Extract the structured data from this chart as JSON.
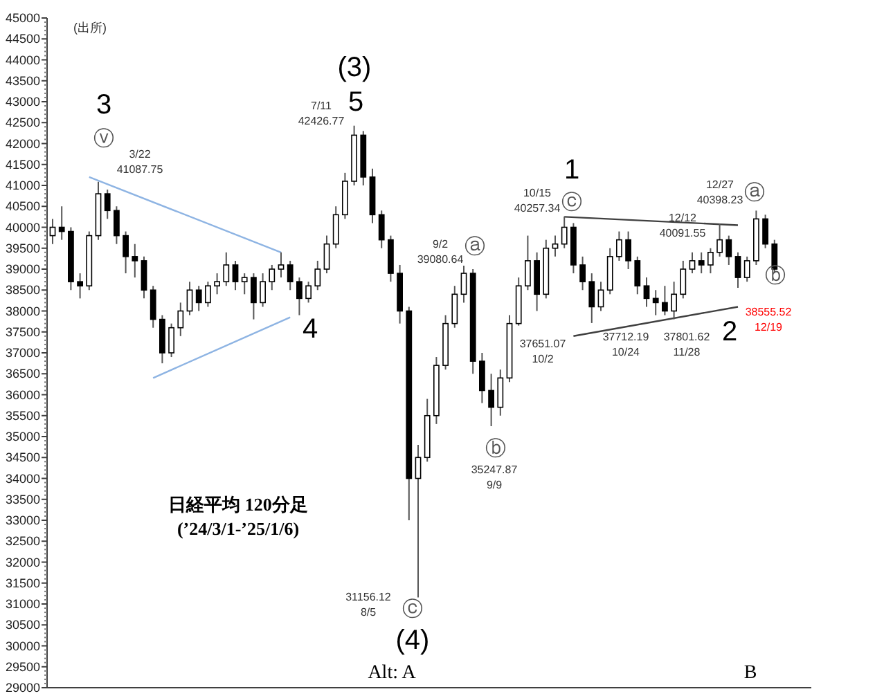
{
  "chart_data": {
    "type": "candlestick",
    "categories": [
      null,
      null,
      null,
      null,
      null,
      null,
      null,
      null,
      null,
      null,
      null,
      null,
      null,
      null,
      null,
      null,
      null,
      null,
      null,
      null,
      null,
      null,
      null,
      null,
      null,
      null,
      null,
      null,
      null,
      null,
      null,
      null,
      null,
      null,
      null,
      null,
      null,
      null,
      null,
      null,
      null,
      null,
      null,
      null,
      null,
      null,
      null,
      null,
      null,
      null,
      null,
      null,
      null,
      null,
      null,
      null,
      null,
      null,
      null,
      null,
      null,
      null,
      null,
      null,
      null,
      null,
      null,
      null,
      null,
      null,
      null,
      null,
      null,
      null,
      null,
      null,
      null,
      null,
      null,
      null
    ],
    "ohlc": [
      [
        39800,
        40200,
        39600,
        40000
      ],
      [
        40000,
        40500,
        39700,
        39900
      ],
      [
        39900,
        40000,
        38500,
        38700
      ],
      [
        38700,
        38900,
        38300,
        38600
      ],
      [
        38600,
        39900,
        38500,
        39800
      ],
      [
        39800,
        41087.75,
        39700,
        40800
      ],
      [
        40800,
        40900,
        40200,
        40400
      ],
      [
        40400,
        40500,
        39600,
        39800
      ],
      [
        39800,
        39900,
        38900,
        39300
      ],
      [
        39300,
        39600,
        38800,
        39200
      ],
      [
        39200,
        39300,
        38300,
        38500
      ],
      [
        38500,
        38600,
        37600,
        37800
      ],
      [
        37800,
        37900,
        36750,
        37000
      ],
      [
        37000,
        37700,
        36900,
        37600
      ],
      [
        37600,
        38200,
        37400,
        38000
      ],
      [
        38000,
        38700,
        37900,
        38500
      ],
      [
        38500,
        38600,
        38000,
        38200
      ],
      [
        38200,
        38700,
        38100,
        38600
      ],
      [
        38600,
        38900,
        38400,
        38700
      ],
      [
        38700,
        39400,
        38600,
        39100
      ],
      [
        39100,
        39200,
        38500,
        38700
      ],
      [
        38700,
        38900,
        38400,
        38800
      ],
      [
        38800,
        38900,
        37800,
        38200
      ],
      [
        38200,
        38900,
        38100,
        38700
      ],
      [
        38700,
        39100,
        38500,
        39000
      ],
      [
        39000,
        39400,
        38800,
        39100
      ],
      [
        39100,
        39200,
        38500,
        38700
      ],
      [
        38700,
        38800,
        37900,
        38300
      ],
      [
        38300,
        38700,
        38200,
        38600
      ],
      [
        38600,
        39200,
        38500,
        39000
      ],
      [
        39000,
        39800,
        38900,
        39600
      ],
      [
        39600,
        40500,
        39500,
        40300
      ],
      [
        40300,
        41300,
        40200,
        41100
      ],
      [
        41100,
        42426.77,
        41000,
        42200
      ],
      [
        42200,
        42300,
        41000,
        41200
      ],
      [
        41200,
        41400,
        40100,
        40300
      ],
      [
        40300,
        40400,
        39500,
        39700
      ],
      [
        39700,
        39800,
        38700,
        38900
      ],
      [
        38900,
        39100,
        37700,
        38000
      ],
      [
        38000,
        38100,
        33000,
        34000
      ],
      [
        34000,
        34800,
        31156.12,
        34500
      ],
      [
        34500,
        35900,
        34400,
        35500
      ],
      [
        35500,
        36900,
        35300,
        36700
      ],
      [
        36700,
        37900,
        36600,
        37700
      ],
      [
        37700,
        38600,
        37600,
        38400
      ],
      [
        38400,
        39080.64,
        38200,
        38900
      ],
      [
        38900,
        39000,
        36500,
        36800
      ],
      [
        36800,
        37000,
        35800,
        36100
      ],
      [
        36100,
        36500,
        35247.87,
        35700
      ],
      [
        35700,
        36600,
        35500,
        36400
      ],
      [
        36400,
        37900,
        36300,
        37700
      ],
      [
        37700,
        38800,
        37651.07,
        38600
      ],
      [
        38600,
        39800,
        38500,
        39200
      ],
      [
        39200,
        39400,
        38000,
        38400
      ],
      [
        38400,
        39700,
        38300,
        39500
      ],
      [
        39500,
        39800,
        39300,
        39600
      ],
      [
        39600,
        40257.34,
        39500,
        40000
      ],
      [
        40000,
        40100,
        38900,
        39100
      ],
      [
        39100,
        39300,
        38500,
        38700
      ],
      [
        38700,
        38900,
        37712.19,
        38100
      ],
      [
        38100,
        38700,
        38000,
        38500
      ],
      [
        38500,
        39500,
        38400,
        39300
      ],
      [
        39300,
        39900,
        39200,
        39700
      ],
      [
        39700,
        39900,
        39000,
        39200
      ],
      [
        39200,
        39300,
        38400,
        38600
      ],
      [
        38600,
        38800,
        38100,
        38300
      ],
      [
        38300,
        38500,
        37900,
        38200
      ],
      [
        38200,
        38600,
        37900,
        38000
      ],
      [
        38000,
        38700,
        37801.62,
        38400
      ],
      [
        38400,
        39200,
        38300,
        39000
      ],
      [
        39000,
        39400,
        38900,
        39200
      ],
      [
        39200,
        39400,
        38900,
        39100
      ],
      [
        39100,
        39500,
        38900,
        39400
      ],
      [
        39400,
        40091.55,
        39300,
        39700
      ],
      [
        39700,
        39800,
        39100,
        39300
      ],
      [
        39300,
        39400,
        38555.52,
        38800
      ],
      [
        38800,
        39300,
        38700,
        39200
      ],
      [
        39200,
        40398.23,
        39100,
        40200
      ],
      [
        40200,
        40300,
        39500,
        39600
      ],
      [
        39600,
        39700,
        38900,
        39000
      ]
    ],
    "series": [
      {
        "type": "line",
        "color": "#8eb4e3",
        "values": [
          null,
          null,
          null,
          null,
          41200,
          null,
          null,
          null,
          null,
          null,
          null,
          null,
          null,
          null,
          null,
          null,
          null,
          null,
          null,
          null,
          null,
          null,
          null,
          null,
          null,
          39400,
          null,
          null,
          null,
          null,
          null,
          null,
          null,
          null,
          null,
          null,
          null,
          null,
          null,
          null,
          null,
          null,
          null,
          null,
          null,
          null,
          null,
          null,
          null,
          null,
          null,
          null,
          null,
          null,
          null,
          null,
          null,
          null,
          null,
          null,
          null,
          null,
          null,
          null,
          null,
          null,
          null,
          null,
          null,
          null,
          null,
          null,
          null,
          null,
          null,
          null,
          null,
          null,
          null,
          null
        ]
      },
      {
        "type": "line",
        "color": "#8eb4e3",
        "values": [
          null,
          null,
          null,
          null,
          null,
          null,
          null,
          null,
          null,
          null,
          null,
          36400,
          null,
          null,
          null,
          null,
          null,
          null,
          null,
          null,
          null,
          null,
          null,
          null,
          null,
          null,
          37850,
          null,
          null,
          null,
          null,
          null,
          null,
          null,
          null,
          null,
          null,
          null,
          null,
          null,
          null,
          null,
          null,
          null,
          null,
          null,
          null,
          null,
          null,
          null,
          null,
          null,
          null,
          null,
          null,
          null,
          null,
          null,
          null,
          null,
          null,
          null,
          null,
          null,
          null,
          null,
          null,
          null,
          null,
          null,
          null,
          null,
          null,
          null,
          null,
          null,
          null,
          null,
          null,
          null
        ]
      },
      {
        "type": "line",
        "color": "#404040",
        "values": [
          null,
          null,
          null,
          null,
          null,
          null,
          null,
          null,
          null,
          null,
          null,
          null,
          null,
          null,
          null,
          null,
          null,
          null,
          null,
          null,
          null,
          null,
          null,
          null,
          null,
          null,
          null,
          null,
          null,
          null,
          null,
          null,
          null,
          null,
          null,
          null,
          null,
          null,
          null,
          null,
          null,
          null,
          null,
          null,
          null,
          null,
          null,
          null,
          null,
          null,
          null,
          null,
          null,
          null,
          null,
          null,
          40250,
          null,
          null,
          null,
          null,
          null,
          null,
          null,
          null,
          null,
          null,
          null,
          null,
          null,
          null,
          null,
          null,
          null,
          null,
          40050,
          null,
          null,
          null,
          null
        ]
      },
      {
        "type": "line",
        "color": "#404040",
        "values": [
          null,
          null,
          null,
          null,
          null,
          null,
          null,
          null,
          null,
          null,
          null,
          null,
          null,
          null,
          null,
          null,
          null,
          null,
          null,
          null,
          null,
          null,
          null,
          null,
          null,
          null,
          null,
          null,
          null,
          null,
          null,
          null,
          null,
          null,
          null,
          null,
          null,
          null,
          null,
          null,
          null,
          null,
          null,
          null,
          null,
          null,
          null,
          null,
          null,
          null,
          null,
          null,
          null,
          null,
          null,
          null,
          null,
          37400,
          null,
          null,
          null,
          null,
          null,
          null,
          null,
          null,
          null,
          null,
          null,
          null,
          null,
          null,
          null,
          null,
          null,
          38100,
          null,
          null,
          null,
          null
        ]
      }
    ],
    "ylim": [
      29000,
      45000
    ],
    "yticks": [
      29000,
      29500,
      30000,
      30500,
      31000,
      31500,
      32000,
      32500,
      33000,
      33500,
      34000,
      34500,
      35000,
      35500,
      36000,
      36500,
      37000,
      37500,
      38000,
      38500,
      39000,
      39500,
      40000,
      40500,
      41000,
      41500,
      42000,
      42500,
      43000,
      43500,
      44000,
      44500,
      45000
    ],
    "tick_labels": "y",
    "grid": false,
    "annotations": [
      "(出所)",
      "3",
      "ⓥ",
      "3/22\n41087.75",
      "(3)",
      "5",
      "7/11\n42426.77",
      "4",
      "9/2\n39080.64",
      "ⓐ",
      "ⓑ",
      "35247.87\n9/9",
      "31156.12\n8/5",
      "ⓒ",
      "(4)",
      "Alt:  A",
      "日経平均 120分足\n(’24/3/1-’25/1/6)",
      "1",
      "ⓒ",
      "10/15\n40257.34",
      "12/12\n40091.55",
      "12/27\n40398.23",
      "ⓐ",
      "ⓑ",
      "38555.52\n12/19",
      "2",
      "37651.07\n10/2",
      "37712.19\n10/24",
      "37801.62\n11/28",
      "B"
    ]
  }
}
